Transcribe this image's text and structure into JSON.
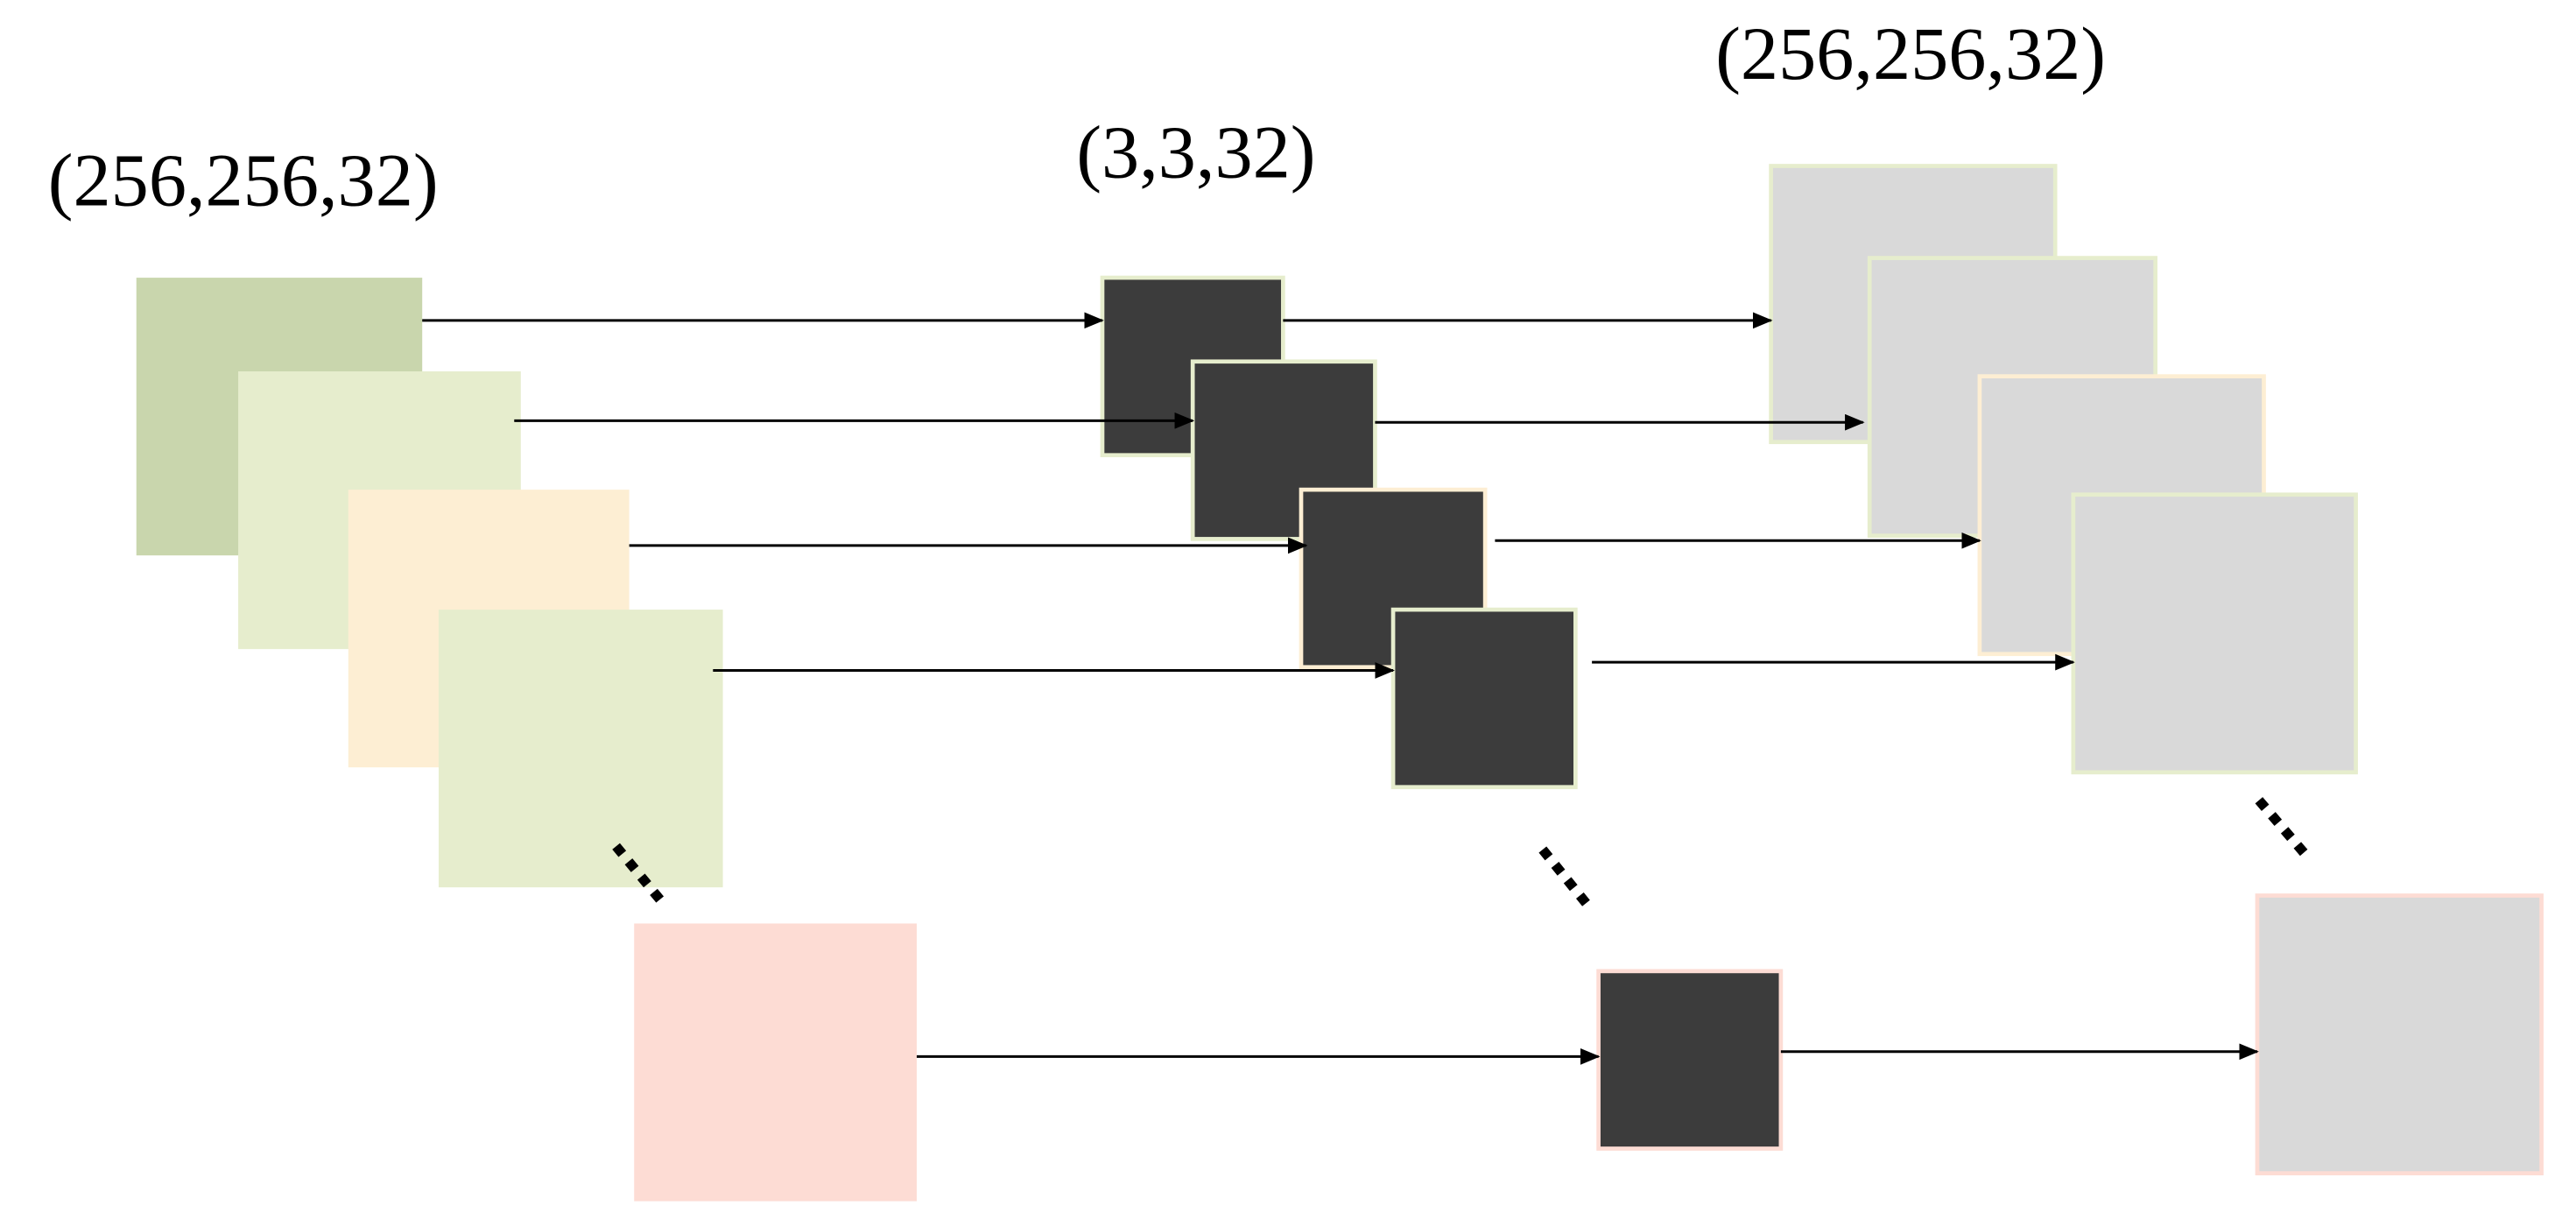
{
  "labels": {
    "input": "(256,256,32)",
    "kernel": "(3,3,32)",
    "output": "(256,256,32)"
  }
}
